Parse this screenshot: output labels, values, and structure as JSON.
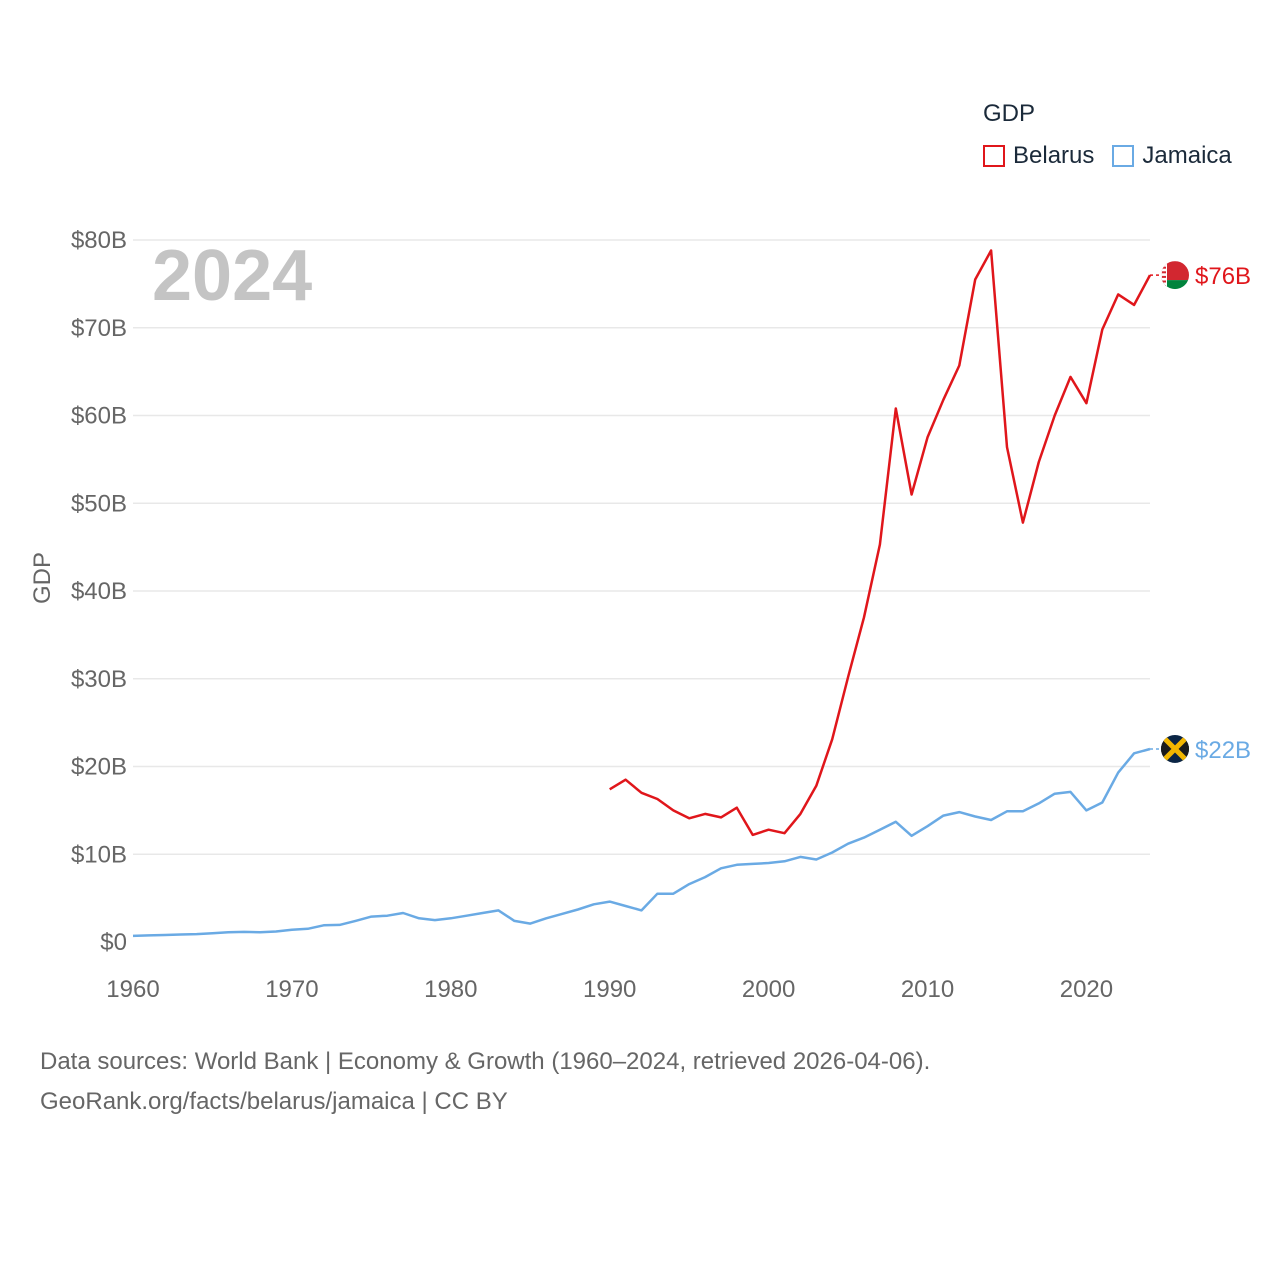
{
  "legend": {
    "title": "GDP",
    "items": [
      {
        "label": "Belarus",
        "color": "#e0161b"
      },
      {
        "label": "Jamaica",
        "color": "#6aaae4"
      }
    ]
  },
  "source": {
    "line1": "Data sources: World Bank | Economy & Growth (1960–2024, retrieved 2026-04-06).",
    "line2": "GeoRank.org/facts/belarus/jamaica | CC BY"
  },
  "chart_data": {
    "type": "line",
    "title": "GDP",
    "watermark_year": "2024",
    "xlabel": "",
    "ylabel": "GDP",
    "xlim": [
      1960,
      2024
    ],
    "ylim": [
      0,
      80
    ],
    "x_ticks": [
      1960,
      1970,
      1980,
      1990,
      2000,
      2010,
      2020
    ],
    "y_ticks": [
      0,
      10,
      20,
      30,
      40,
      50,
      60,
      70,
      80
    ],
    "y_tick_labels": [
      "$0",
      "$10B",
      "$20B",
      "$30B",
      "$40B",
      "$50B",
      "$60B",
      "$70B",
      "$80B"
    ],
    "grid": true,
    "series": [
      {
        "name": "Belarus",
        "color": "#e0161b",
        "end_label": "$76B",
        "marker_icon": "belarus-flag-icon",
        "x": [
          1990,
          1991,
          1992,
          1993,
          1994,
          1995,
          1996,
          1997,
          1998,
          1999,
          2000,
          2001,
          2002,
          2003,
          2004,
          2005,
          2006,
          2007,
          2008,
          2009,
          2010,
          2011,
          2012,
          2013,
          2014,
          2015,
          2016,
          2017,
          2018,
          2019,
          2020,
          2021,
          2022,
          2023,
          2024
        ],
        "values": [
          17.4,
          18.5,
          17.0,
          16.3,
          15.0,
          14.1,
          14.6,
          14.2,
          15.3,
          12.2,
          12.8,
          12.4,
          14.6,
          17.8,
          23.1,
          30.2,
          37.0,
          45.3,
          60.8,
          51.0,
          57.5,
          61.8,
          65.7,
          75.5,
          78.8,
          56.4,
          47.8,
          54.7,
          60.0,
          64.4,
          61.4,
          69.8,
          73.8,
          72.6,
          76.0
        ]
      },
      {
        "name": "Jamaica",
        "color": "#6aaae4",
        "end_label": "$22B",
        "marker_icon": "jamaica-flag-icon",
        "x": [
          1960,
          1961,
          1962,
          1963,
          1964,
          1965,
          1966,
          1967,
          1968,
          1969,
          1970,
          1971,
          1972,
          1973,
          1974,
          1975,
          1976,
          1977,
          1978,
          1979,
          1980,
          1981,
          1982,
          1983,
          1984,
          1985,
          1986,
          1987,
          1988,
          1989,
          1990,
          1991,
          1992,
          1993,
          1994,
          1995,
          1996,
          1997,
          1998,
          1999,
          2000,
          2001,
          2002,
          2003,
          2004,
          2005,
          2006,
          2007,
          2008,
          2009,
          2010,
          2011,
          2012,
          2013,
          2014,
          2015,
          2016,
          2017,
          2018,
          2019,
          2020,
          2021,
          2022,
          2023,
          2024
        ],
        "values": [
          0.7,
          0.75,
          0.8,
          0.85,
          0.9,
          1.0,
          1.1,
          1.15,
          1.1,
          1.2,
          1.4,
          1.5,
          1.9,
          1.95,
          2.4,
          2.9,
          3.0,
          3.3,
          2.7,
          2.5,
          2.7,
          3.0,
          3.3,
          3.6,
          2.4,
          2.1,
          2.7,
          3.2,
          3.7,
          4.3,
          4.6,
          4.1,
          3.6,
          5.5,
          5.5,
          6.6,
          7.4,
          8.4,
          8.8,
          8.9,
          9.0,
          9.2,
          9.7,
          9.4,
          10.2,
          11.2,
          11.9,
          12.8,
          13.7,
          12.1,
          13.2,
          14.4,
          14.8,
          14.3,
          13.9,
          14.9,
          14.9,
          15.8,
          16.9,
          17.1,
          15.0,
          15.9,
          19.3,
          21.5,
          22.0
        ]
      }
    ]
  }
}
